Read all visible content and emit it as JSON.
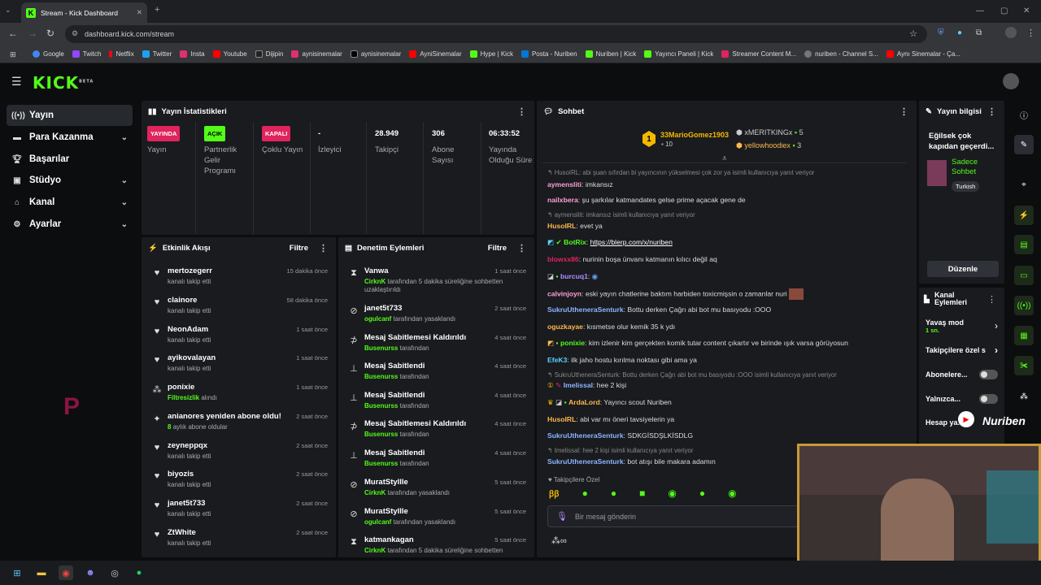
{
  "browser": {
    "tab_title": "Stream - Kick Dashboard",
    "url": "dashboard.kick.com/stream",
    "bookmarks": [
      "Google",
      "Twitch",
      "Netflix",
      "Twitter",
      "Insta",
      "Youtube",
      "Dijipin",
      "aynisinemalar",
      "aynisinemalar",
      "AyniSinemalar",
      "Hype | Kick",
      "Posta - Nuriben",
      "Nuriben | Kick",
      "Yayıncı Paneli | Kick",
      "Streamer Content M...",
      "nuriben - Channel S...",
      "Aynı Sinemalar - Ça..."
    ]
  },
  "logo": "KICK",
  "logo_sup": "BETA",
  "sidebar": {
    "items": [
      {
        "label": "Yayın",
        "icon": "broadcast-icon",
        "chev": ""
      },
      {
        "label": "Para Kazanma",
        "icon": "money-icon",
        "chev": "⌄"
      },
      {
        "label": "Başarılar",
        "icon": "trophy-icon",
        "chev": ""
      },
      {
        "label": "Stüdyo",
        "icon": "studio-icon",
        "chev": "⌄"
      },
      {
        "label": "Kanal",
        "icon": "channel-icon",
        "chev": "⌄"
      },
      {
        "label": "Ayarlar",
        "icon": "gear-icon",
        "chev": "⌄"
      }
    ]
  },
  "stats": {
    "title": "Yayın İstatistikleri",
    "items": [
      {
        "value": "YAYINDA",
        "label": "Yayın",
        "badge": "#e0245e"
      },
      {
        "value": "AÇIK",
        "label": "Partnerlik Gelir Programı",
        "badge": "#53fc18"
      },
      {
        "value": "KAPALI",
        "label": "Çoklu Yayın",
        "badge": "#e0245e"
      },
      {
        "value": "-",
        "label": "İzleyici"
      },
      {
        "value": "28.949",
        "label": "Takipçi"
      },
      {
        "value": "306",
        "label": "Abone Sayısı"
      },
      {
        "value": "06:33:52",
        "label": "Yayında Olduğu Süre"
      }
    ]
  },
  "activity": {
    "title": "Etkinlik Akışı",
    "filter": "Filtre",
    "items": [
      {
        "name": "mertozegerr",
        "sub": "kanalı takip etti",
        "time": "15 dakika önce",
        "icon": "heart-icon"
      },
      {
        "name": "clainore",
        "sub": "kanalı takip etti",
        "time": "58 dakika önce",
        "icon": "heart-icon"
      },
      {
        "name": "NeonAdam",
        "sub": "kanalı takip etti",
        "time": "1 saat önce",
        "icon": "heart-icon"
      },
      {
        "name": "ayikovalayan",
        "sub": "kanalı takip etti",
        "time": "1 saat önce",
        "icon": "heart-icon"
      },
      {
        "name": "ponixie",
        "sub_hl": "Filtresizlik",
        "sub": "alındı",
        "time": "1 saat önce",
        "icon": "reward-icon"
      },
      {
        "name": "anianores yeniden abone oldu!",
        "sub_hl": "8",
        "sub": "aylık abone oldular",
        "time": "2 saat önce",
        "icon": "sparkle-icon"
      },
      {
        "name": "zeyneppqx",
        "sub": "kanalı takip etti",
        "time": "2 saat önce",
        "icon": "heart-icon"
      },
      {
        "name": "biyozis",
        "sub": "kanalı takip etti",
        "time": "2 saat önce",
        "icon": "heart-icon"
      },
      {
        "name": "janet5t733",
        "sub": "kanalı takip etti",
        "time": "2 saat önce",
        "icon": "heart-icon"
      },
      {
        "name": "ZtWhite",
        "sub": "kanalı takip etti",
        "time": "2 saat önce",
        "icon": "heart-icon"
      }
    ]
  },
  "moderation": {
    "title": "Denetim Eylemleri",
    "filter": "Filtre",
    "items": [
      {
        "name": "Vanwa",
        "hl": "CirknK",
        "sub": "tarafından 5 dakika süreliğine sohbetten uzaklaştırıldı",
        "time": "1 saat önce",
        "icon": "hourglass-icon"
      },
      {
        "name": "janet5t733",
        "hl": "ogulcanf",
        "sub": "tarafından yasaklandı",
        "time": "2 saat önce",
        "icon": "ban-icon"
      },
      {
        "name": "Mesaj Sabitlemesi Kaldırıldı",
        "hl": "Busenurss",
        "sub": "tarafından",
        "time": "4 saat önce",
        "icon": "unpin-icon"
      },
      {
        "name": "Mesaj Sabitlendi",
        "hl": "Busenurss",
        "sub": "tarafından",
        "time": "4 saat önce",
        "icon": "pin-icon"
      },
      {
        "name": "Mesaj Sabitlendi",
        "hl": "Busenurss",
        "sub": "tarafından",
        "time": "4 saat önce",
        "icon": "pin-icon"
      },
      {
        "name": "Mesaj Sabitlemesi Kaldırıldı",
        "hl": "Busenurss",
        "sub": "tarafından",
        "time": "4 saat önce",
        "icon": "unpin-icon"
      },
      {
        "name": "Mesaj Sabitlendi",
        "hl": "Busenurss",
        "sub": "tarafından",
        "time": "4 saat önce",
        "icon": "pin-icon"
      },
      {
        "name": "MuratStyllle",
        "hl": "CirknK",
        "sub": "tarafından yasaklandı",
        "time": "5 saat önce",
        "icon": "ban-icon"
      },
      {
        "name": "MuratStyllle",
        "hl": "ogulcanf",
        "sub": "tarafından yasaklandı",
        "time": "5 saat önce",
        "icon": "ban-icon"
      },
      {
        "name": "katmankagan",
        "hl": "CirknK",
        "sub": "tarafından 5 dakika süreliğine sohbetten",
        "time": "5 saat önce",
        "icon": "hourglass-icon"
      }
    ]
  },
  "chat": {
    "title": "Sohbet",
    "top": [
      {
        "name": "33MarioGomez1903",
        "n": "10",
        "rank": "1"
      },
      {
        "name": "xMERITKINGx",
        "n": "5"
      },
      {
        "name": "yellowhoodiex",
        "n": "3"
      }
    ],
    "messages": [
      {
        "reply": "HusoIRL: abi şuan sıfırdan bi yayıncının yükselmesi çok zor ya isimli kullanıcıya yanıt veriyor"
      },
      {
        "user": "aymensliti",
        "color": "#ff9fd6",
        "text": "imkansız"
      },
      {
        "user": "nailxbera",
        "color": "#ff9fd6",
        "text": "şu şarkılar katmandates gelse prime açacak gene de"
      },
      {
        "reply": "aymensliti: imkansız isimli kullanıcıya yanıt veriyor"
      },
      {
        "user": "HusoIRL",
        "color": "#ffb84d",
        "text": "evet ya"
      },
      {
        "user": "BotRix",
        "color": "#53fc18",
        "text": "https://blerp.com/x/nuriben",
        "link": true
      },
      {
        "user": "blowxx86",
        "color": "#e0245e",
        "text": "nurinin boşa ünvanı katmanın kılıcı değil aq"
      },
      {
        "user": "burcuq1",
        "color": "#b58cff",
        "text": ""
      },
      {
        "user": "calvinjoyn",
        "color": "#ff9fd6",
        "text": "eski yayın chatlerine baktım harbiden toxicmişsin o zamanlar nuri"
      },
      {
        "user": "SukruUtheneraSenturk",
        "color": "#8fb4ff",
        "text": "Bottu derken Çağrı abi bot mu basıyodu :OOO"
      },
      {
        "user": "oguzkayae",
        "color": "#ffb84d",
        "text": "kısmetse olur kemik 35 k ydı"
      },
      {
        "user": "ponixie",
        "color": "#53fc18",
        "text": "kim izlenir kim gerçekten komik tutar content çıkartır ve birinde ışık varsa görüyosun"
      },
      {
        "user": "EfeK3",
        "color": "#5cd1ff",
        "text": "ilk jaho hostu kırılma noktası gibi ama ya"
      },
      {
        "reply": "SukruUtheneraSenturk: Bottu derken Çağrı abi bot mu basıyodu :OOO isimli kullanıcıya yanıt veriyor"
      },
      {
        "user": "Imelissal",
        "color": "#8fb4ff",
        "text": "hee 2 kişi"
      },
      {
        "user": "ArdaLord",
        "color": "#ffb84d",
        "text": "Yayıncı scout Nuriben"
      },
      {
        "user": "HusoIRL",
        "color": "#ffb84d",
        "text": "abi var mı öneri tavsiyelerin ya"
      },
      {
        "user": "SukruUtheneraSenturk",
        "color": "#8fb4ff",
        "text": "SDKGİSDŞLKİSDLG"
      },
      {
        "reply": "Imelissal: hee 2 kişi isimli kullanıcıya yanıt veriyor"
      },
      {
        "user": "SukruUtheneraSenturk",
        "color": "#8fb4ff",
        "text": "bot atışı bile makara adamın"
      }
    ],
    "followers_only": "Takipçilere Özel",
    "input_placeholder": "Bir mesaj gönderin"
  },
  "stream_info": {
    "title": "Yayın bilgisi",
    "stream_title": "Eğilsek çok kapıdan geçerdi...",
    "category": "Sadece Sohbet",
    "tag": "Turkish",
    "edit": "Düzenle"
  },
  "channel_actions": {
    "title": "Kanal Eylemleri",
    "items": [
      {
        "label": "Yavaş mod",
        "sub": "1 sn."
      },
      {
        "label": "Takipçilere özel s"
      },
      {
        "label": "Abonelere..."
      },
      {
        "label": "Yalnızca..."
      },
      {
        "label": "Hesap ya...isi"
      }
    ]
  },
  "overlay": {
    "brand": "Nuriben"
  }
}
